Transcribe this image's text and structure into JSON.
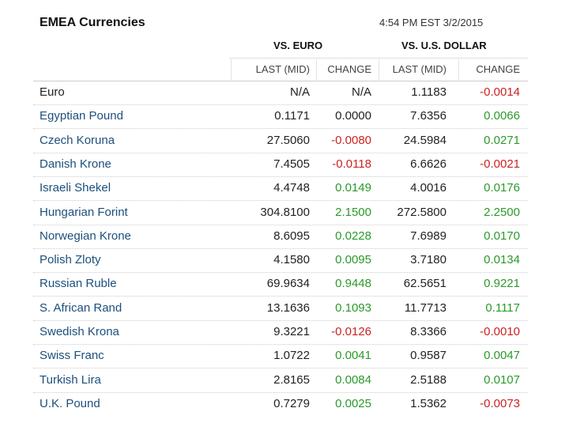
{
  "header": {
    "title": "EMEA Currencies",
    "timestamp": "4:54 PM EST 3/2/2015"
  },
  "table": {
    "groups": [
      "VS. EURO",
      "VS. U.S. DOLLAR"
    ],
    "columns": [
      "LAST (MID)",
      "CHANGE",
      "LAST (MID)",
      "CHANGE"
    ],
    "rows": [
      [
        "Euro",
        "N/A",
        "N/A",
        "1.1183",
        "-0.0014"
      ],
      [
        "Egyptian Pound",
        "0.1171",
        "0.0000",
        "7.6356",
        "0.0066"
      ],
      [
        "Czech Koruna",
        "27.5060",
        "-0.0080",
        "24.5984",
        "0.0271"
      ],
      [
        "Danish Krone",
        "7.4505",
        "-0.0118",
        "6.6626",
        "-0.0021"
      ],
      [
        "Israeli Shekel",
        "4.4748",
        "0.0149",
        "4.0016",
        "0.0176"
      ],
      [
        "Hungarian Forint",
        "304.8100",
        "2.1500",
        "272.5800",
        "2.2500"
      ],
      [
        "Norwegian Krone",
        "8.6095",
        "0.0228",
        "7.6989",
        "0.0170"
      ],
      [
        "Polish Zloty",
        "4.1580",
        "0.0095",
        "3.7180",
        "0.0134"
      ],
      [
        "Russian Ruble",
        "69.9634",
        "0.9448",
        "62.5651",
        "0.9221"
      ],
      [
        "S. African Rand",
        "13.1636",
        "0.1093",
        "11.7713",
        "0.1117"
      ],
      [
        "Swedish Krona",
        "9.3221",
        "-0.0126",
        "8.3366",
        "-0.0010"
      ],
      [
        "Swiss Franc",
        "1.0722",
        "0.0041",
        "0.9587",
        "0.0047"
      ],
      [
        "Turkish Lira",
        "2.8165",
        "0.0084",
        "2.5188",
        "0.0107"
      ],
      [
        "U.K. Pound",
        "0.7279",
        "0.0025",
        "1.5362",
        "-0.0073"
      ]
    ]
  }
}
